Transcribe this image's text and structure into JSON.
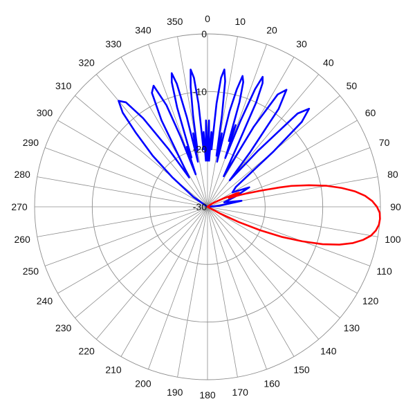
{
  "chart_data": {
    "type": "line",
    "projection": "polar",
    "theta_zero": "top",
    "theta_direction": "clockwise",
    "angle_ticks": [
      0,
      10,
      20,
      30,
      40,
      50,
      60,
      70,
      80,
      90,
      100,
      110,
      120,
      130,
      140,
      150,
      160,
      170,
      180,
      190,
      200,
      210,
      220,
      230,
      240,
      250,
      260,
      270,
      280,
      290,
      300,
      310,
      320,
      330,
      340,
      350
    ],
    "angle_tick_labels": [
      "0",
      "10",
      "20",
      "30",
      "40",
      "50",
      "60",
      "70",
      "80",
      "90",
      "100",
      "110",
      "120",
      "130",
      "140",
      "150",
      "160",
      "170",
      "180",
      "190",
      "200",
      "210",
      "220",
      "230",
      "240",
      "250",
      "260",
      "270",
      "280",
      "290",
      "300",
      "310",
      "320",
      "330",
      "340",
      "350"
    ],
    "rlim": [
      -30,
      0
    ],
    "radial_ticks": [
      0,
      -10,
      -20,
      -30
    ],
    "radial_tick_labels": [
      "0",
      "-10",
      "-20",
      "-30"
    ],
    "radial_label_angle": 0,
    "grid": true,
    "series": [
      {
        "color": "#0000ff",
        "theta": [
          -60,
          -55,
          -50,
          -47,
          -44,
          -42,
          -40,
          -38,
          -36,
          -34,
          -32,
          -30,
          -28,
          -26,
          -24,
          -22,
          -21,
          -20,
          -19,
          -18,
          -17,
          -16,
          -15,
          -14,
          -13,
          -12,
          -11,
          -10,
          -9,
          -8,
          -7,
          -6,
          -5,
          -4,
          -3,
          -2,
          -1,
          0,
          1,
          2,
          3,
          4,
          5,
          6,
          7,
          8,
          9,
          10,
          11,
          12,
          13,
          14,
          15,
          16,
          17,
          18,
          19,
          20,
          21,
          22,
          23,
          24,
          25,
          26,
          28,
          30,
          32,
          34,
          36,
          38,
          40,
          42,
          44,
          46,
          48,
          50,
          55,
          60,
          65,
          70,
          75,
          80,
          85,
          90
        ],
        "r": [
          -30,
          -27,
          -22,
          -17,
          -12,
          -8,
          -6,
          -7,
          -11,
          -18,
          -24,
          -21,
          -13,
          -8,
          -7,
          -11,
          -17,
          -24,
          -19,
          -21,
          -12,
          -7.5,
          -6,
          -8,
          -14,
          -22,
          -17,
          -20,
          -14,
          -9,
          -6,
          -7.5,
          -12,
          -20,
          -17,
          -22,
          -15,
          -22,
          -15,
          -22,
          -17,
          -20,
          -12,
          -7.5,
          -6,
          -8,
          -14,
          -21,
          -17,
          -22,
          -13,
          -9,
          -6.5,
          -7.5,
          -11,
          -18,
          -15,
          -21,
          -14,
          -8,
          -5.5,
          -6.5,
          -10,
          -18,
          -24,
          -14,
          -7,
          -5.5,
          -9,
          -18,
          -24,
          -17,
          -7.5,
          -5.5,
          -8,
          -15,
          -24,
          -25,
          -22,
          -25,
          -27,
          -24,
          -28,
          -30,
          -30
        ]
      },
      {
        "color": "#ff0000",
        "theta": [
          50,
          55,
          60,
          62,
          64,
          65,
          66,
          67,
          68,
          69,
          70,
          71,
          72,
          73,
          74,
          75,
          76,
          78,
          80,
          82,
          84,
          86,
          88,
          90,
          92,
          94,
          96,
          98,
          100,
          102,
          104,
          106,
          108,
          110,
          112,
          114,
          116,
          118,
          120
        ],
        "r": [
          -30,
          -29,
          -28,
          -27,
          -26,
          -24.5,
          -24,
          -24.5,
          -26,
          -25,
          -24,
          -23,
          -22,
          -20.5,
          -19,
          -17,
          -15,
          -12,
          -9,
          -6.5,
          -4.3,
          -2.6,
          -1.4,
          -0.6,
          -0.1,
          0,
          -0.1,
          -0.5,
          -1.2,
          -2.4,
          -4,
          -6.2,
          -9,
          -12.5,
          -16,
          -20,
          -24,
          -27.5,
          -30
        ]
      }
    ]
  }
}
